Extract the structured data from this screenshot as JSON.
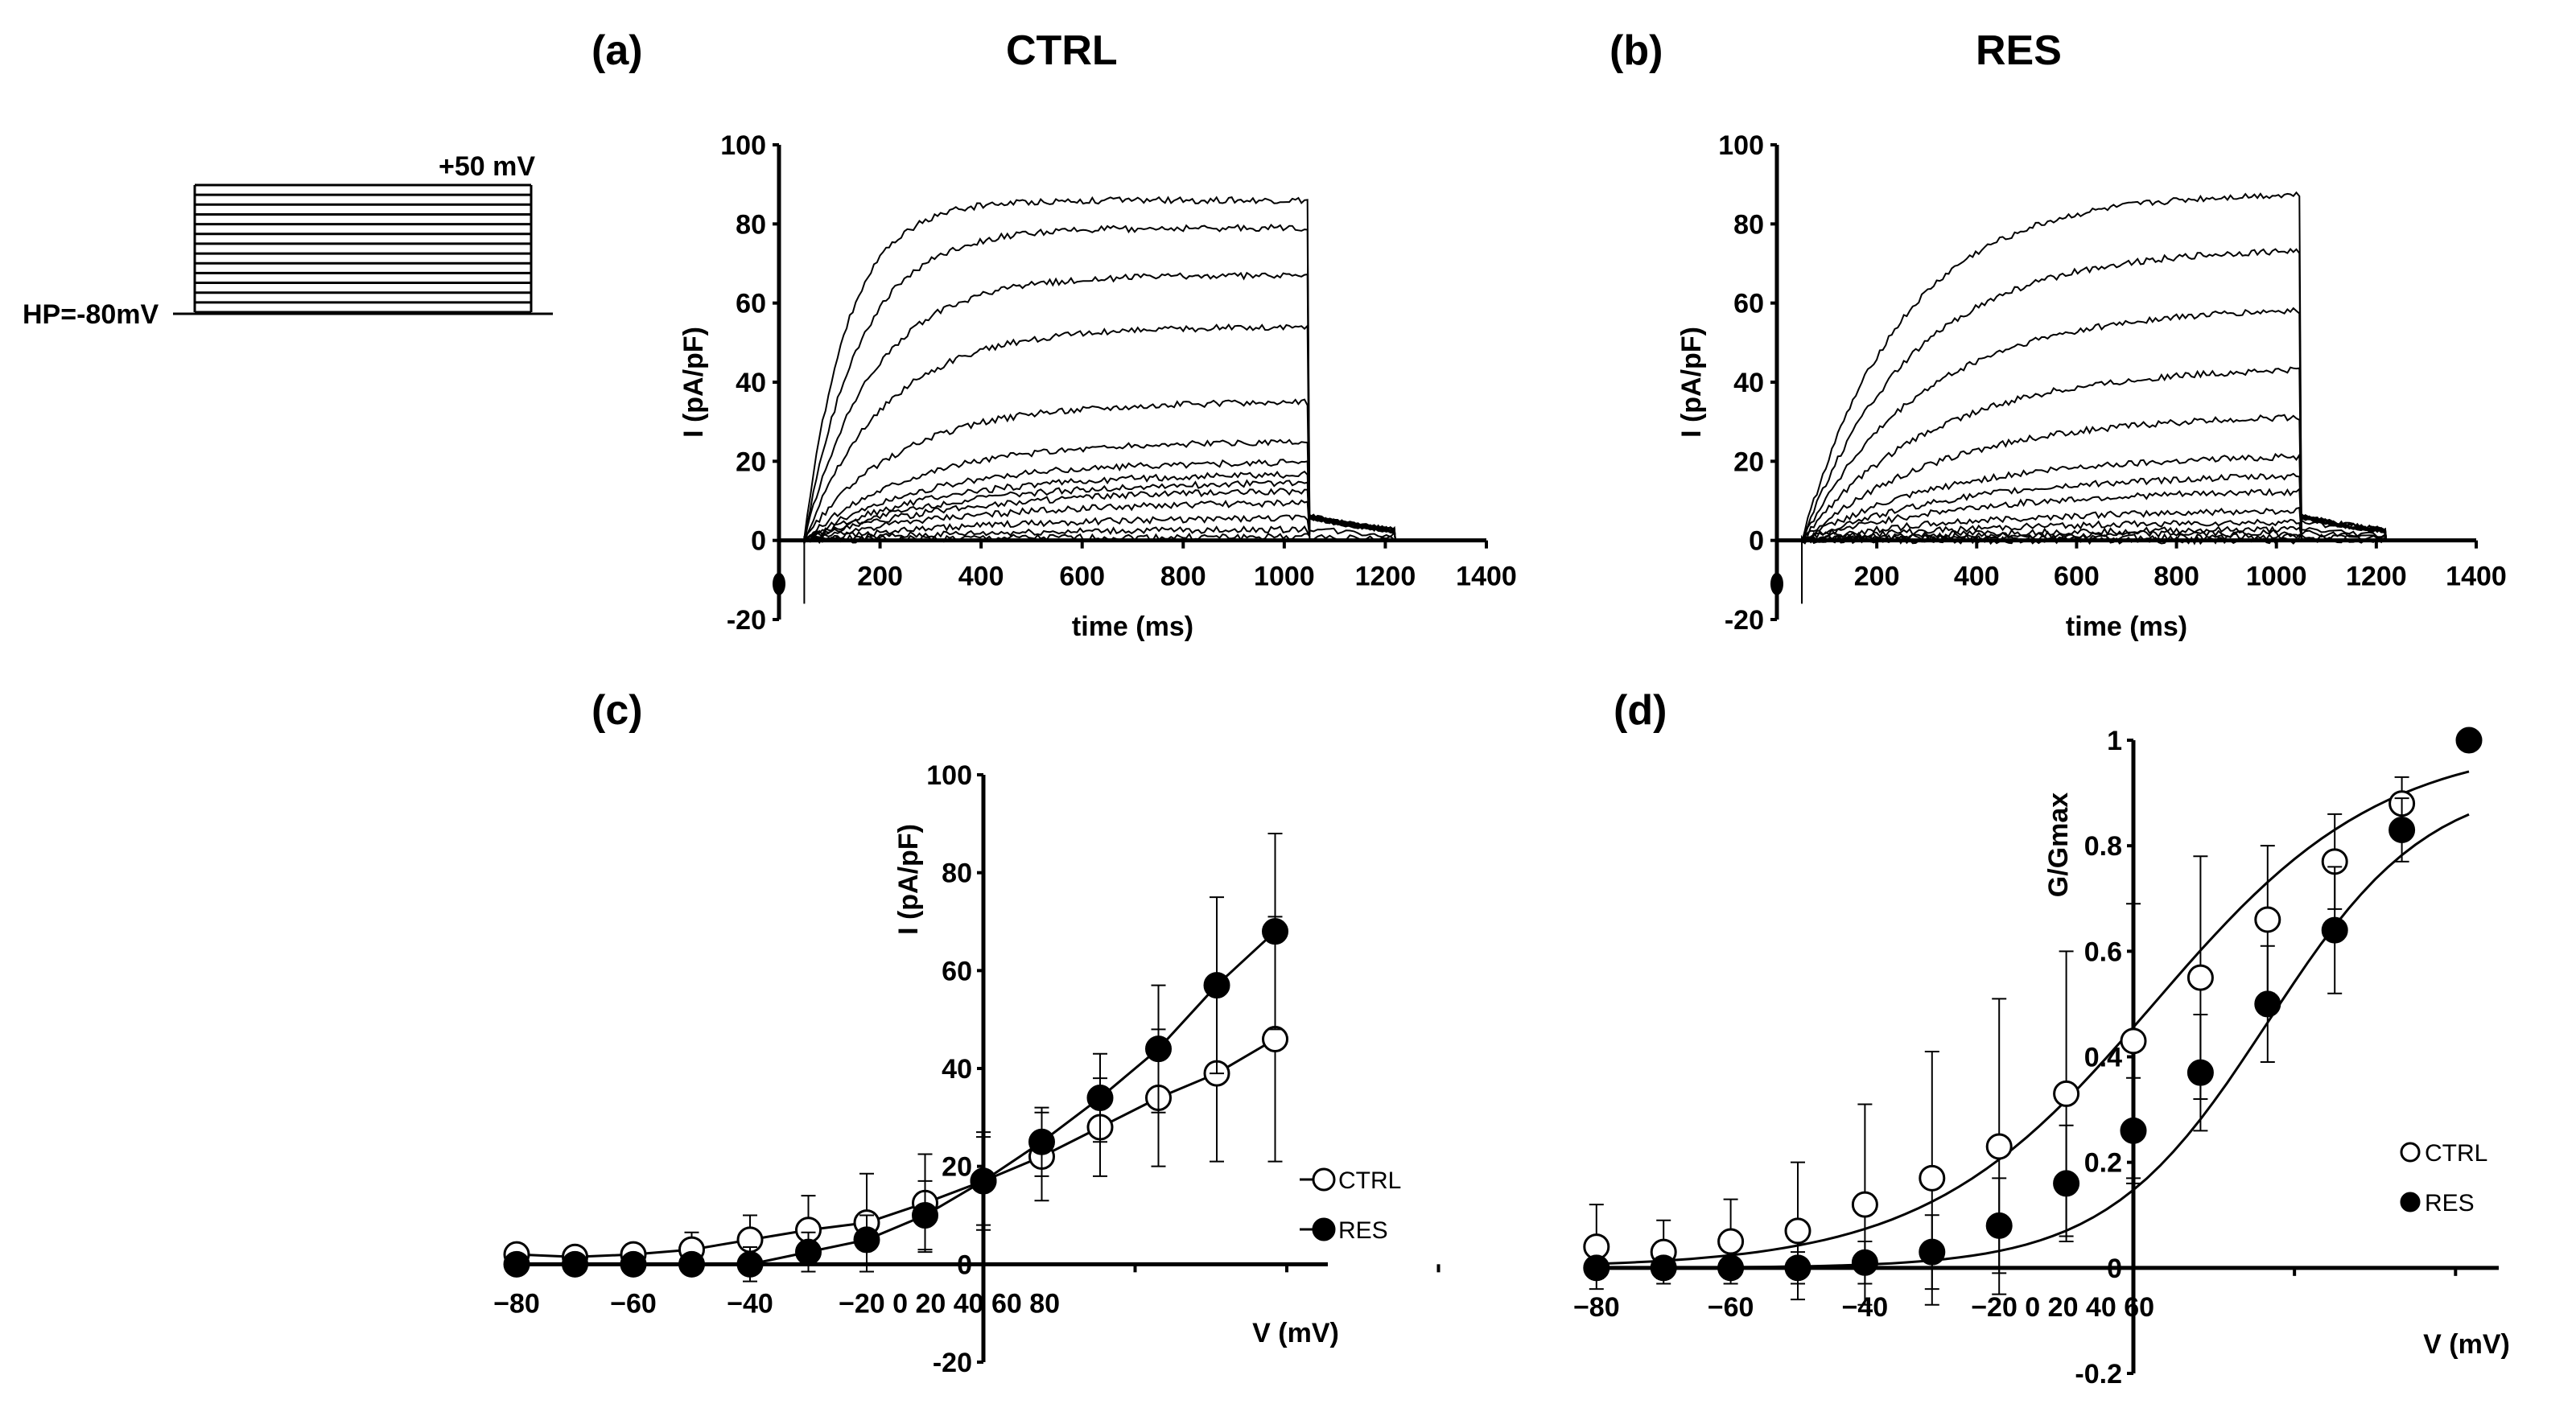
{
  "panels": {
    "a": {
      "letter": "(a)",
      "title": "CTRL"
    },
    "b": {
      "letter": "(b)",
      "title": "RES"
    },
    "c": {
      "letter": "(c)"
    },
    "d": {
      "letter": "(d)"
    }
  },
  "protocol": {
    "top_label": "+50 mV",
    "hold_label": "HP=-80mV",
    "steps": 14
  },
  "colors": {
    "ink": "#000000",
    "background": "#ffffff"
  },
  "chart_data": [
    {
      "id": "a",
      "type": "line",
      "title": "CTRL",
      "xlabel": "time (ms)",
      "ylabel": "I (pA/pF)",
      "xlim": [
        0,
        1400
      ],
      "ylim": [
        -20,
        100
      ],
      "xticks": [
        "200",
        "400",
        "600",
        "800",
        "1000",
        "1200",
        "1400"
      ],
      "yticks": [
        "-20",
        "0",
        "20",
        "40",
        "60",
        "80",
        "100"
      ],
      "pulse_ms": [
        50,
        1050
      ],
      "tail_end_ms": 1220,
      "trace_end_current": [
        1,
        3,
        6,
        10,
        13,
        15,
        17,
        20,
        25,
        35,
        54,
        67,
        79,
        86
      ]
    },
    {
      "id": "b",
      "type": "line",
      "title": "RES",
      "xlabel": "time (ms)",
      "ylabel": "I (pA/pF)",
      "xlim": [
        0,
        1400
      ],
      "ylim": [
        -20,
        100
      ],
      "xticks": [
        "200",
        "400",
        "600",
        "800",
        "1000",
        "1200",
        "1400"
      ],
      "yticks": [
        "-20",
        "0",
        "20",
        "40",
        "60",
        "80",
        "100"
      ],
      "pulse_ms": [
        50,
        1050
      ],
      "tail_end_ms": 1220,
      "trace_end_current": [
        0,
        1,
        2,
        3,
        5,
        8,
        13,
        17,
        22,
        32,
        44,
        59,
        74,
        88
      ]
    },
    {
      "id": "c",
      "type": "line",
      "xlabel": "V (mV)",
      "ylabel": "I (pA/pF)",
      "ylim": [
        -20,
        100
      ],
      "xtick_labels": [
        "−80",
        "−60",
        "−40",
        "−20 0 20 40 60 80"
      ],
      "yticks": [
        "-20",
        "0",
        "20",
        "40",
        "60",
        "80",
        "100"
      ],
      "x": [
        -80,
        -70,
        -60,
        -50,
        -40,
        -30,
        -20,
        -10,
        0,
        10,
        20,
        30,
        40,
        50
      ],
      "series": [
        {
          "name": "CTRL",
          "marker": "open",
          "values": [
            2,
            1.5,
            2,
            3,
            5,
            7,
            8.5,
            12.5,
            17,
            22,
            28,
            34,
            39,
            46
          ],
          "err": [
            2,
            1.5,
            2,
            3.5,
            5,
            7,
            10,
            10,
            10,
            9,
            10,
            14,
            18,
            25
          ]
        },
        {
          "name": "RES",
          "marker": "filled",
          "values": [
            0,
            0,
            0,
            0,
            0,
            2.5,
            5,
            10,
            17,
            25,
            34,
            44,
            57,
            68
          ],
          "err": [
            0.5,
            0.5,
            0.5,
            0.5,
            3.5,
            4,
            5,
            7,
            9,
            7,
            9,
            13,
            18,
            20
          ]
        }
      ],
      "legend": "right"
    },
    {
      "id": "d",
      "type": "scatter",
      "xlabel": "V (mV)",
      "ylabel": "G/Gmax",
      "ylim": [
        -0.2,
        1
      ],
      "xtick_labels": [
        "−80",
        "−60",
        "−40",
        "−20 0 20 40 60"
      ],
      "yticks": [
        "-0.2",
        "0",
        "0.2",
        "0.4",
        "0.6",
        "0.8",
        "1"
      ],
      "x": [
        -80,
        -70,
        -60,
        -50,
        -40,
        -30,
        -20,
        -10,
        0,
        10,
        20,
        30,
        40,
        50
      ],
      "series": [
        {
          "name": "CTRL",
          "marker": "open",
          "values": [
            0.04,
            0.03,
            0.05,
            0.07,
            0.12,
            0.17,
            0.23,
            0.33,
            0.43,
            0.55,
            0.66,
            0.77,
            0.88,
            null
          ],
          "err": [
            0.08,
            0.06,
            0.08,
            0.13,
            0.19,
            0.24,
            0.28,
            0.27,
            0.26,
            0.23,
            0.14,
            0.09,
            0.05,
            0
          ],
          "fit": {
            "v_half": 3,
            "k": 17
          }
        },
        {
          "name": "RES",
          "marker": "filled",
          "values": [
            0,
            0,
            0,
            0,
            0.01,
            0.03,
            0.08,
            0.16,
            0.26,
            0.37,
            0.5,
            0.64,
            0.83,
            1.0
          ],
          "err": [
            0.02,
            0.02,
            0.02,
            0.03,
            0.04,
            0.07,
            0.09,
            0.11,
            0.1,
            0.11,
            0.11,
            0.12,
            0.06,
            0
          ],
          "fit": {
            "v_half": 20,
            "k": 12
          }
        }
      ],
      "legend": "right"
    }
  ]
}
